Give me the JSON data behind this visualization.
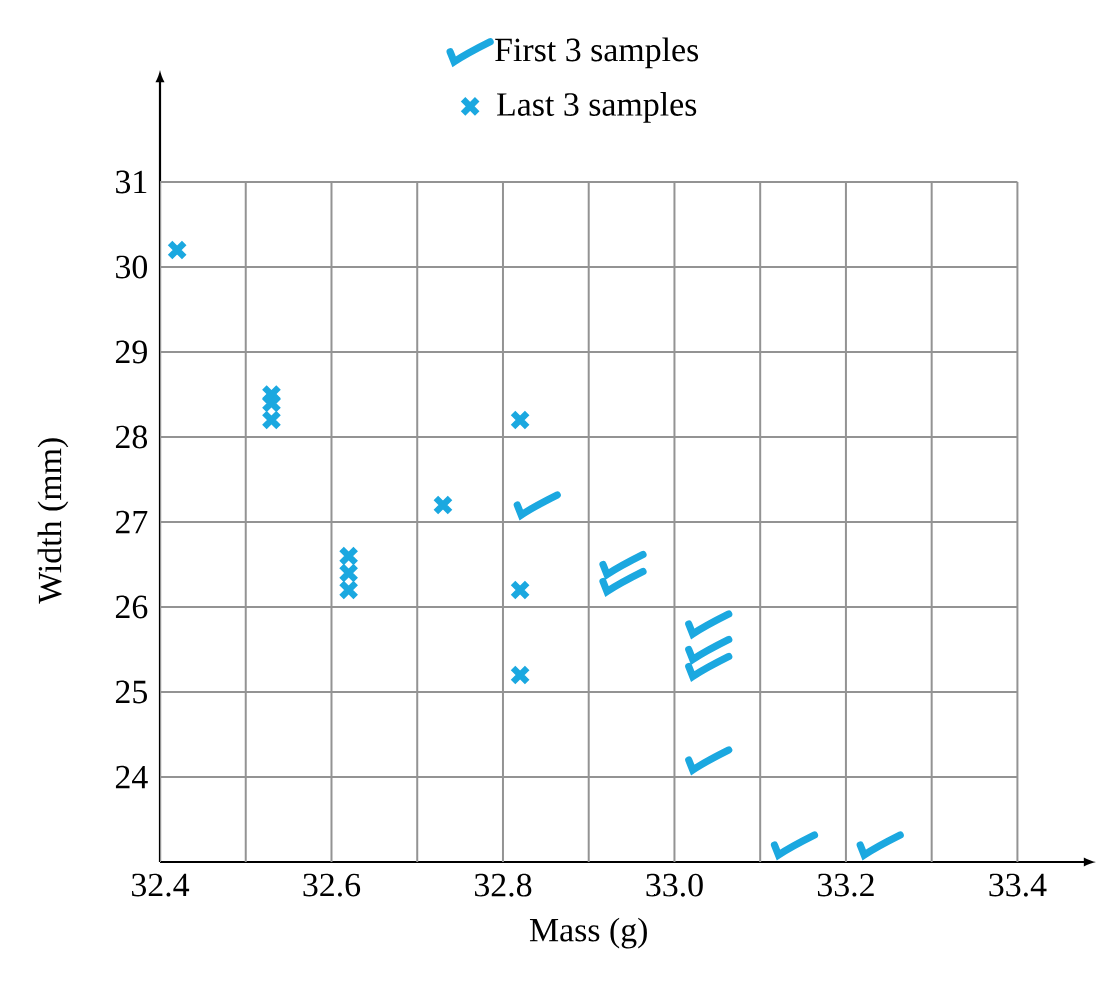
{
  "chart_data": {
    "type": "scatter",
    "xlabel": "Mass (g)",
    "ylabel": "Width (mm)",
    "xlim": [
      32.4,
      33.48
    ],
    "ylim": [
      23,
      32.2
    ],
    "xticks": [
      32.4,
      {
        "value": 32.5,
        "label": null
      },
      32.6,
      {
        "value": 32.7,
        "label": null
      },
      32.8,
      {
        "value": 32.9,
        "label": null
      },
      {
        "value": 33,
        "label": "33.0"
      },
      {
        "value": 33.1,
        "label": null
      },
      33.2,
      {
        "value": 33.3,
        "label": null
      },
      33.4
    ],
    "yticks": [
      24,
      25,
      26,
      27,
      28,
      29,
      30,
      31
    ],
    "grid": true,
    "legend": "top",
    "series": [
      {
        "name": "First 3 samples",
        "color": "#1ba8e0",
        "x": [
          32.84,
          32.94,
          32.94,
          33.04,
          33.04,
          33.04,
          33.04,
          33.14,
          33.24
        ],
        "values": [
          27.2,
          26.5,
          26.3,
          25.8,
          25.5,
          25.3,
          24.2,
          23.2,
          23.2
        ]
      },
      {
        "name": "Last 3 samples",
        "color": "#1ba8e0",
        "marker": "cross",
        "x": [
          32.42,
          32.53,
          32.53,
          32.53,
          32.62,
          32.62,
          32.62,
          32.73,
          32.82,
          32.82,
          32.82
        ],
        "values": [
          30.2,
          28.5,
          28.4,
          28.2,
          26.6,
          26.4,
          26.2,
          27.2,
          28.2,
          26.2,
          25.2
        ]
      }
    ]
  }
}
